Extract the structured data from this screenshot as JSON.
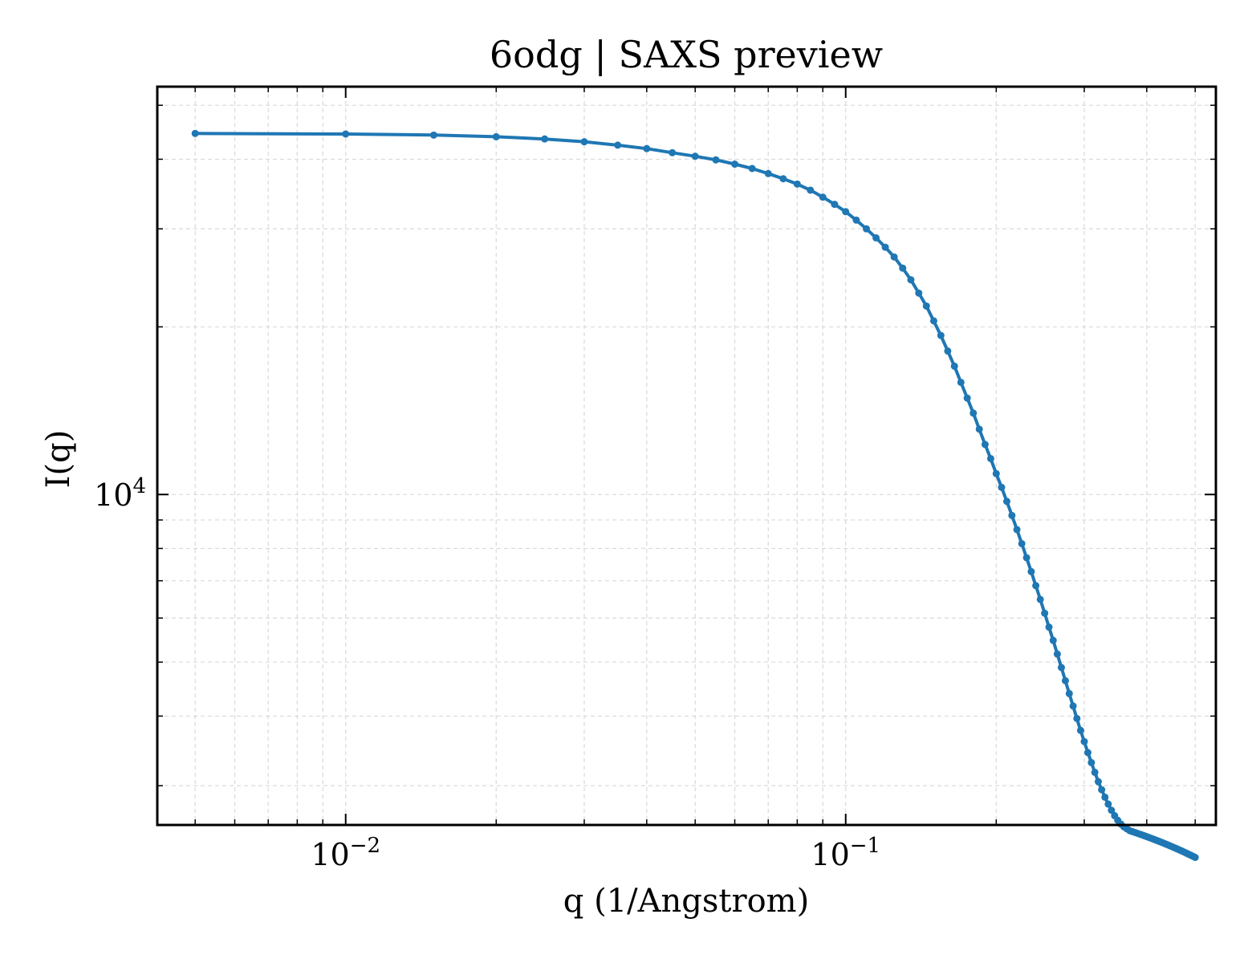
{
  "chart_data": {
    "type": "line",
    "title": "6odg | SAXS preview",
    "xlabel": "q (1/Angstrom)",
    "ylabel": "I(q)",
    "x_scale": "log",
    "y_scale": "log",
    "xlim": [
      0.0042,
      0.55
    ],
    "ylim": [
      2550,
      54000
    ],
    "grid": true,
    "legend": "none",
    "x_ticks": [
      {
        "value": 0.01,
        "base": "10",
        "exp": "−2"
      },
      {
        "value": 0.1,
        "base": "10",
        "exp": "−1"
      }
    ],
    "y_ticks": [
      {
        "value": 10000,
        "base": "10",
        "exp": "4"
      }
    ],
    "series": [
      {
        "color": "#1f77b4",
        "x": [
          0.005,
          0.01,
          0.015,
          0.02,
          0.025,
          0.03,
          0.035,
          0.04,
          0.045,
          0.05,
          0.055,
          0.06,
          0.065,
          0.07,
          0.075,
          0.08,
          0.085,
          0.09,
          0.095,
          0.1,
          0.105,
          0.11,
          0.115,
          0.12,
          0.125,
          0.13,
          0.135,
          0.14,
          0.145,
          0.15,
          0.155,
          0.16,
          0.165,
          0.17,
          0.175,
          0.18,
          0.185,
          0.19,
          0.195,
          0.2,
          0.205,
          0.21,
          0.215,
          0.22,
          0.225,
          0.23,
          0.235,
          0.24,
          0.245,
          0.25,
          0.255,
          0.26,
          0.265,
          0.27,
          0.275,
          0.28,
          0.285,
          0.29,
          0.295,
          0.3,
          0.305,
          0.31,
          0.315,
          0.32,
          0.325,
          0.33,
          0.335,
          0.34,
          0.345,
          0.35,
          0.355,
          0.36,
          0.365,
          0.37,
          0.375,
          0.38,
          0.385,
          0.39,
          0.395,
          0.4,
          0.405,
          0.41,
          0.415,
          0.42,
          0.425,
          0.43,
          0.435,
          0.44,
          0.445,
          0.45,
          0.455,
          0.46,
          0.465,
          0.47,
          0.475,
          0.48,
          0.485,
          0.49,
          0.495,
          0.5
        ],
        "y": [
          44500,
          44400,
          44200,
          43900,
          43500,
          43000,
          42400,
          41800,
          41100,
          40500,
          39900,
          39200,
          38500,
          37700,
          36900,
          36100,
          35200,
          34200,
          33200,
          32200,
          31100,
          30000,
          28900,
          27800,
          26700,
          25500,
          24300,
          23000,
          21800,
          20500,
          19300,
          18100,
          17000,
          15900,
          14900,
          14000,
          13100,
          12300,
          11600,
          10900,
          10300,
          9720,
          9170,
          8650,
          8160,
          7700,
          7270,
          6860,
          6480,
          6120,
          5780,
          5470,
          5170,
          4890,
          4630,
          4390,
          4170,
          3960,
          3770,
          3600,
          3440,
          3300,
          3170,
          3050,
          2950,
          2860,
          2780,
          2710,
          2650,
          2600,
          2560,
          2530,
          2510,
          2490,
          2480,
          2470,
          2460,
          2450,
          2440,
          2430,
          2420,
          2410,
          2400,
          2390,
          2380,
          2370,
          2360,
          2350,
          2340,
          2330,
          2320,
          2310,
          2300,
          2290,
          2280,
          2270,
          2260,
          2250,
          2240,
          2230
        ]
      }
    ]
  }
}
